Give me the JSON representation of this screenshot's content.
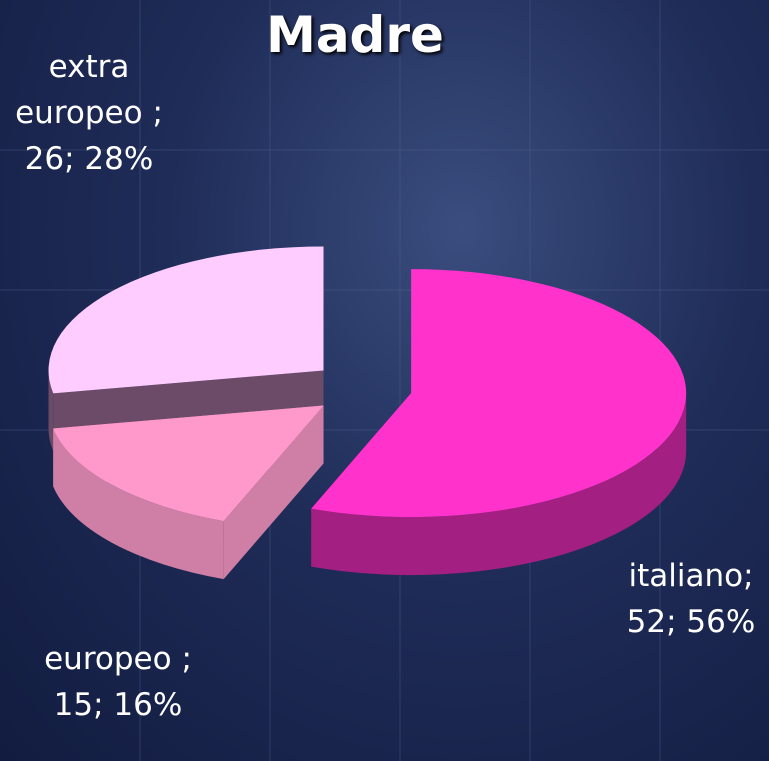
{
  "chart_data": {
    "type": "pie3d",
    "title": "Madre",
    "categories": [
      "italiano",
      "europeo",
      "extra europeo"
    ],
    "values": [
      52,
      15,
      26
    ],
    "percent_labels": [
      "56%",
      "16%",
      "28%"
    ],
    "separator": ";",
    "colors": [
      "#ff33cc",
      "#ff99cc",
      "#ffccff"
    ],
    "side_colors": [
      "#a31f82",
      "#cf7fa6",
      "#6b4b68"
    ]
  }
}
